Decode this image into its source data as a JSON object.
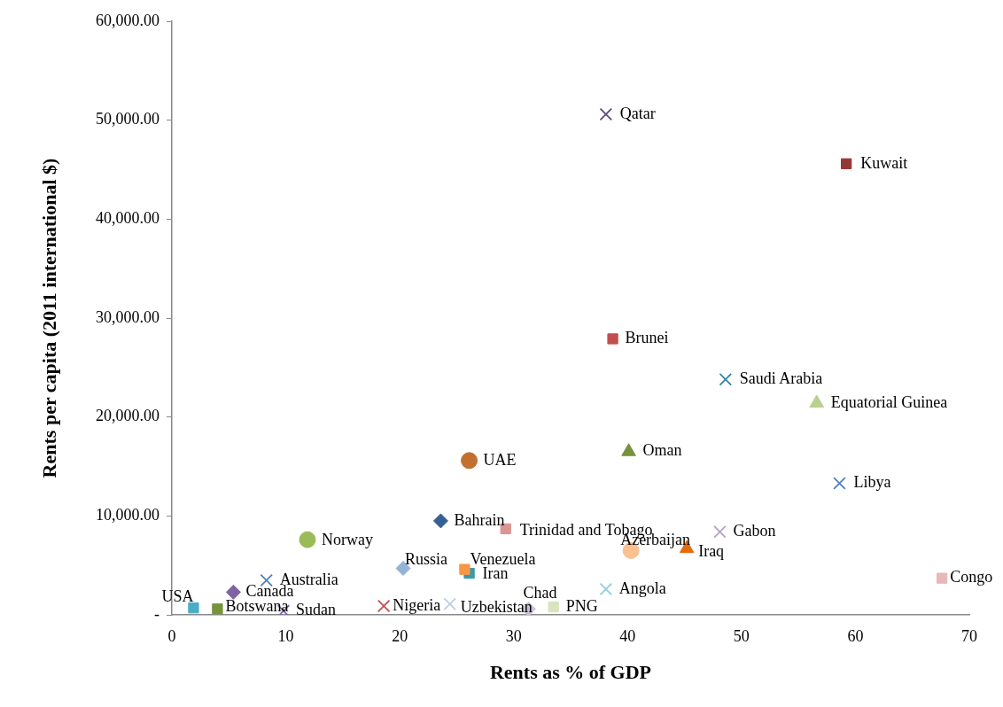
{
  "chart_data": {
    "type": "scatter",
    "xlabel": "Rents as % of GDP",
    "ylabel": "Rents per capita (2011 international $)",
    "xlim": [
      0,
      70
    ],
    "xticks": [
      0,
      10,
      20,
      30,
      40,
      50,
      60,
      70
    ],
    "ylim": [
      0,
      60000
    ],
    "yticks": [
      {
        "value": 0,
        "label": "-"
      },
      {
        "value": 10000,
        "label": "10,000.00"
      },
      {
        "value": 20000,
        "label": "20,000.00"
      },
      {
        "value": 30000,
        "label": "30,000.00"
      },
      {
        "value": 40000,
        "label": "40,000.00"
      },
      {
        "value": 50000,
        "label": "50,000.00"
      },
      {
        "value": 60000,
        "label": "60,000.00"
      }
    ],
    "grid": false,
    "legend": false,
    "series": [
      {
        "name": "Qatar",
        "color": "#604a7b",
        "marker": "cross",
        "x": [
          38.1
        ],
        "values": [
          50600
        ]
      },
      {
        "name": "Kuwait",
        "color": "#953735",
        "marker": "square",
        "x": [
          59.2
        ],
        "values": [
          45600
        ]
      },
      {
        "name": "Brunei",
        "color": "#c0504d",
        "marker": "square",
        "x": [
          38.7
        ],
        "values": [
          27900
        ]
      },
      {
        "name": "Saudi Arabia",
        "color": "#31859c",
        "marker": "cross",
        "x": [
          48.6
        ],
        "values": [
          23800
        ]
      },
      {
        "name": "Equatorial Guinea",
        "color": "#b7d18f",
        "marker": "triangle",
        "x": [
          56.6
        ],
        "values": [
          21400
        ]
      },
      {
        "name": "UAE",
        "color": "#c0702f",
        "marker": "circle",
        "x": [
          26.1
        ],
        "values": [
          15600
        ]
      },
      {
        "name": "Oman",
        "color": "#76923c",
        "marker": "triangle",
        "x": [
          40.1
        ],
        "values": [
          16500
        ]
      },
      {
        "name": "Libya",
        "color": "#4f81bd",
        "marker": "cross",
        "x": [
          58.6
        ],
        "values": [
          13300
        ]
      },
      {
        "name": "Bahrain",
        "color": "#376092",
        "marker": "diamond",
        "x": [
          23.6
        ],
        "values": [
          9500
        ]
      },
      {
        "name": "Trinidad and Tobago",
        "color": "#d99694",
        "marker": "square",
        "x": [
          29.3
        ],
        "values": [
          8700
        ]
      },
      {
        "name": "Gabon",
        "color": "#b3a2c7",
        "marker": "cross",
        "x": [
          48.1
        ],
        "values": [
          8400
        ]
      },
      {
        "name": "Norway",
        "color": "#9bbb59",
        "marker": "circle",
        "x": [
          11.9
        ],
        "values": [
          7600
        ]
      },
      {
        "name": "Azerbaijan",
        "color": "#fac090",
        "marker": "circle",
        "x": [
          40.3
        ],
        "values": [
          6500
        ]
      },
      {
        "name": "Iraq",
        "color": "#e46c0a",
        "marker": "triangle",
        "x": [
          45.2
        ],
        "values": [
          6700
        ]
      },
      {
        "name": "Russia",
        "color": "#95b3d7",
        "marker": "diamond",
        "x": [
          20.3
        ],
        "values": [
          4700
        ]
      },
      {
        "name": "Venezuela",
        "color": "#f79646",
        "marker": "square",
        "x": [
          25.7
        ],
        "values": [
          4600
        ]
      },
      {
        "name": "Iran",
        "color": "#3b98a8",
        "marker": "square",
        "x": [
          26.1
        ],
        "values": [
          4200
        ]
      },
      {
        "name": "Australia",
        "color": "#4f81bd",
        "marker": "cross",
        "x": [
          8.3
        ],
        "values": [
          3500
        ]
      },
      {
        "name": "Congo",
        "color": "#e6b9b8",
        "marker": "square",
        "x": [
          67.6
        ],
        "values": [
          3700
        ]
      },
      {
        "name": "Angola",
        "color": "#93cddd",
        "marker": "cross",
        "x": [
          38.1
        ],
        "values": [
          2600
        ]
      },
      {
        "name": "Canada",
        "color": "#8064a2",
        "marker": "diamond",
        "x": [
          5.4
        ],
        "values": [
          2300
        ]
      },
      {
        "name": "USA",
        "color": "#4bacc6",
        "marker": "square",
        "x": [
          1.9
        ],
        "values": [
          700
        ]
      },
      {
        "name": "Botswana",
        "color": "#77933c",
        "marker": "square",
        "x": [
          4.0
        ],
        "values": [
          600
        ]
      },
      {
        "name": "Sudan",
        "color": "#8064a2",
        "marker": "cross",
        "x": [
          9.8
        ],
        "values": [
          400
        ]
      },
      {
        "name": "Nigeria",
        "color": "#c0504d",
        "marker": "cross",
        "x": [
          18.6
        ],
        "values": [
          900
        ]
      },
      {
        "name": "Uzbekistan",
        "color": "#b9cde5",
        "marker": "cross",
        "x": [
          24.4
        ],
        "values": [
          1100
        ]
      },
      {
        "name": "Chad",
        "color": "#ccc1da",
        "marker": "diamond",
        "x": [
          31.3
        ],
        "values": [
          600
        ]
      },
      {
        "name": "PNG",
        "color": "#d7e4bd",
        "marker": "square",
        "x": [
          33.5
        ],
        "values": [
          800
        ]
      }
    ]
  }
}
